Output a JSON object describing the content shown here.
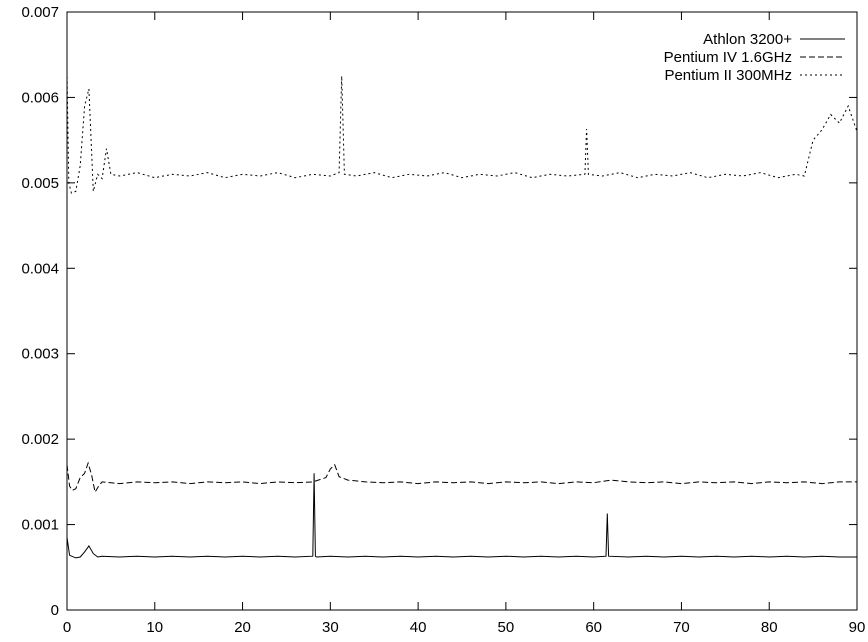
{
  "chart_data": {
    "type": "line",
    "title": "",
    "xlabel": "",
    "ylabel": "",
    "xlim": [
      0,
      90
    ],
    "ylim": [
      0,
      0.007
    ],
    "xticks": [
      "0",
      "10",
      "20",
      "30",
      "40",
      "50",
      "60",
      "70",
      "80",
      "90"
    ],
    "yticks": [
      "0",
      "0.001",
      "0.002",
      "0.003",
      "0.004",
      "0.005",
      "0.006",
      "0.007"
    ],
    "grid": false,
    "legend_position": "top-right",
    "series": [
      {
        "name": "Athlon 3200+",
        "dash": "solid",
        "x": [
          0,
          0.3,
          1,
          1.5,
          2,
          2.5,
          3,
          3.5,
          4,
          6,
          8,
          10,
          12,
          14,
          16,
          18,
          20,
          22,
          24,
          26,
          28,
          28.15,
          28.3,
          28.45,
          30,
          32,
          34,
          36,
          38,
          40,
          42,
          44,
          46,
          48,
          50,
          52,
          54,
          56,
          58,
          60,
          61.4,
          61.55,
          61.7,
          64,
          66,
          68,
          70,
          72,
          74,
          76,
          78,
          80,
          82,
          84,
          86,
          88,
          90
        ],
        "y": [
          0.00085,
          0.00064,
          0.00061,
          0.00062,
          0.00068,
          0.00075,
          0.00066,
          0.00062,
          0.00063,
          0.00062,
          0.00063,
          0.00062,
          0.00063,
          0.00062,
          0.00063,
          0.00062,
          0.00063,
          0.00062,
          0.00063,
          0.00062,
          0.00063,
          0.0016,
          0.00063,
          0.00062,
          0.00063,
          0.00062,
          0.00063,
          0.00062,
          0.00063,
          0.00062,
          0.00063,
          0.00062,
          0.00063,
          0.00062,
          0.00063,
          0.00062,
          0.00063,
          0.00062,
          0.00063,
          0.00062,
          0.00063,
          0.00113,
          0.00063,
          0.00062,
          0.00063,
          0.00062,
          0.00063,
          0.00062,
          0.00063,
          0.00062,
          0.00063,
          0.00062,
          0.00063,
          0.00062,
          0.00063,
          0.00062,
          0.00062
        ]
      },
      {
        "name": "Pentium IV 1.6GHz",
        "dash": "dashed",
        "x": [
          0,
          0.3,
          0.6,
          1,
          1.5,
          2,
          2.4,
          2.8,
          3.2,
          3.6,
          4,
          6,
          8,
          10,
          12,
          14,
          16,
          18,
          20,
          22,
          24,
          26,
          28,
          29.5,
          30,
          30.5,
          31,
          32,
          34,
          36,
          38,
          40,
          42,
          44,
          46,
          48,
          50,
          52,
          54,
          56,
          58,
          60,
          62,
          64,
          66,
          68,
          70,
          72,
          74,
          76,
          78,
          80,
          82,
          84,
          86,
          88,
          90
        ],
        "y": [
          0.0017,
          0.00145,
          0.0014,
          0.00142,
          0.00155,
          0.0016,
          0.00172,
          0.00158,
          0.00138,
          0.00145,
          0.0015,
          0.00148,
          0.0015,
          0.00149,
          0.0015,
          0.00148,
          0.0015,
          0.00149,
          0.0015,
          0.00148,
          0.0015,
          0.00149,
          0.0015,
          0.00155,
          0.00165,
          0.0017,
          0.00156,
          0.00152,
          0.0015,
          0.00149,
          0.0015,
          0.00148,
          0.0015,
          0.00149,
          0.0015,
          0.00148,
          0.0015,
          0.00149,
          0.0015,
          0.00148,
          0.0015,
          0.00149,
          0.00152,
          0.0015,
          0.00149,
          0.0015,
          0.00148,
          0.0015,
          0.00149,
          0.0015,
          0.00148,
          0.0015,
          0.00149,
          0.0015,
          0.00148,
          0.0015,
          0.0015
        ]
      },
      {
        "name": "Pentium II 300MHz",
        "dash": "dotted",
        "x": [
          0,
          0.2,
          0.5,
          1,
          1.5,
          2,
          2.5,
          3,
          3.5,
          4,
          4.5,
          5,
          6,
          8,
          10,
          12,
          14,
          16,
          18,
          20,
          22,
          24,
          26,
          28,
          30,
          31,
          31.3,
          31.6,
          33,
          35,
          37,
          39,
          41,
          43,
          45,
          47,
          49,
          51,
          53,
          55,
          57,
          59,
          59.2,
          59.4,
          61,
          63,
          65,
          67,
          69,
          71,
          73,
          75,
          77,
          79,
          81,
          83,
          84,
          85,
          86,
          87,
          88,
          89,
          90
        ],
        "y": [
          0.0063,
          0.005,
          0.00488,
          0.0049,
          0.0052,
          0.0059,
          0.0061,
          0.0049,
          0.0051,
          0.00505,
          0.0054,
          0.0051,
          0.00508,
          0.00512,
          0.00506,
          0.0051,
          0.00508,
          0.00512,
          0.00506,
          0.0051,
          0.00508,
          0.00512,
          0.00506,
          0.0051,
          0.00508,
          0.00512,
          0.00625,
          0.0051,
          0.00508,
          0.00512,
          0.00506,
          0.0051,
          0.00508,
          0.00512,
          0.00506,
          0.0051,
          0.00508,
          0.00512,
          0.00506,
          0.0051,
          0.00508,
          0.0051,
          0.00563,
          0.0051,
          0.00508,
          0.00512,
          0.00506,
          0.0051,
          0.00508,
          0.00512,
          0.00506,
          0.0051,
          0.00508,
          0.00512,
          0.00506,
          0.0051,
          0.00508,
          0.0055,
          0.00562,
          0.0058,
          0.0057,
          0.0059,
          0.0056
        ]
      }
    ]
  },
  "colors": {
    "line": "#000000",
    "background": "#ffffff"
  }
}
